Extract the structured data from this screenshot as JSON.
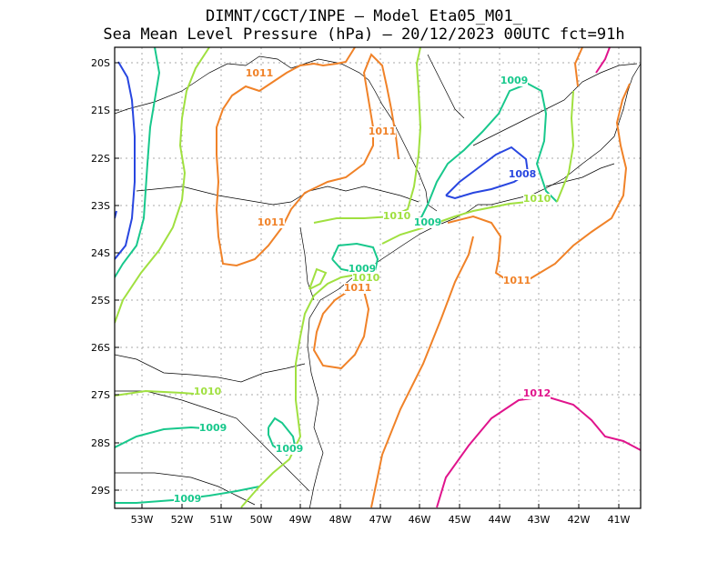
{
  "title_line1": "DIMNT/CGCT/INPE –  Model Eta05_M01_",
  "title_line2": "Sea Mean Level Pressure (hPa) – 20/12/2023 00UTC fct=91h",
  "lat_labels": [
    "20S",
    "21S",
    "22S",
    "23S",
    "24S",
    "25S",
    "26S",
    "27S",
    "28S",
    "29S"
  ],
  "lon_labels": [
    "53W",
    "52W",
    "51W",
    "50W",
    "49W",
    "48W",
    "47W",
    "46W",
    "45W",
    "44W",
    "43W",
    "42W",
    "41W"
  ],
  "contours": [
    {
      "level": "1008",
      "color": "#2846e0"
    },
    {
      "level": "1009",
      "color": "#18c88c"
    },
    {
      "level": "1010",
      "color": "#a0e040"
    },
    {
      "level": "1011",
      "color": "#f08228"
    },
    {
      "level": "1012",
      "color": "#e0148c"
    }
  ],
  "contour_labels": [
    {
      "text": "1011",
      "color": "#f08228"
    },
    {
      "text": "1011",
      "color": "#f08228"
    },
    {
      "text": "1009",
      "color": "#18c88c"
    },
    {
      "text": "1008",
      "color": "#2846e0"
    },
    {
      "text": "1010",
      "color": "#a0e040"
    },
    {
      "text": "1011",
      "color": "#f08228"
    },
    {
      "text": "1010",
      "color": "#a0e040"
    },
    {
      "text": "1009",
      "color": "#18c88c"
    },
    {
      "text": "1009",
      "color": "#18c88c"
    },
    {
      "text": "1010",
      "color": "#a0e040"
    },
    {
      "text": "1011",
      "color": "#f08228"
    },
    {
      "text": "1011",
      "color": "#f08228"
    },
    {
      "text": "1010",
      "color": "#a0e040"
    },
    {
      "text": "1012",
      "color": "#e0148c"
    },
    {
      "text": "1009",
      "color": "#18c88c"
    },
    {
      "text": "1009",
      "color": "#18c88c"
    },
    {
      "text": "1009",
      "color": "#18c88c"
    }
  ]
}
